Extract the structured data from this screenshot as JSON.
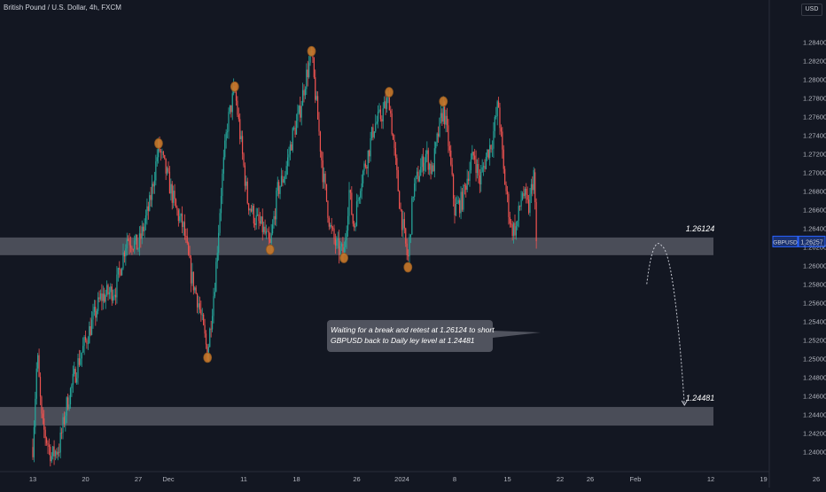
{
  "header": {
    "title": "British Pound / U.S. Dollar, 4h, FXCM",
    "currency": "USD"
  },
  "colors": {
    "background": "#131722",
    "bull": "#26a69a",
    "bear": "#ef5350",
    "zone": "#5d606b",
    "pivot": "#c8782a",
    "axis_text": "#b2b5be",
    "price_tag": "#2962ff"
  },
  "chart_data": {
    "type": "candlestick",
    "symbol": "GBPUSD",
    "timeframe": "4h",
    "ylim": [
      1.238,
      1.2856
    ],
    "x_range_days": [
      0,
      101
    ],
    "y_ticks": [
      "1.28400",
      "1.28200",
      "1.28000",
      "1.27800",
      "1.27600",
      "1.27400",
      "1.27200",
      "1.27000",
      "1.26800",
      "1.26600",
      "1.26400",
      "1.26200",
      "1.26000",
      "1.25800",
      "1.25600",
      "1.25400",
      "1.25200",
      "1.25000",
      "1.24800",
      "1.24600",
      "1.24400",
      "1.24200",
      "1.24000"
    ],
    "x_ticks": [
      {
        "label": "13",
        "day": 0
      },
      {
        "label": "20",
        "day": 7
      },
      {
        "label": "27",
        "day": 14
      },
      {
        "label": "Dec",
        "day": 18
      },
      {
        "label": "11",
        "day": 28
      },
      {
        "label": "18",
        "day": 35
      },
      {
        "label": "26",
        "day": 43
      },
      {
        "label": "2024",
        "day": 49
      },
      {
        "label": "8",
        "day": 56
      },
      {
        "label": "15",
        "day": 63
      },
      {
        "label": "22",
        "day": 70
      },
      {
        "label": "26",
        "day": 74
      },
      {
        "label": "Feb",
        "day": 80
      },
      {
        "label": "12",
        "day": 90
      },
      {
        "label": "19",
        "day": 97
      },
      {
        "label": "26",
        "day": 104
      }
    ],
    "last_price_tag": {
      "symbol": "GBPUSD",
      "value": "1.26257"
    },
    "zones": [
      {
        "label": "1.26124",
        "top": 1.263,
        "bottom": 1.2611
      },
      {
        "label": "1.24481",
        "top": 1.2448,
        "bottom": 1.2428
      }
    ],
    "annotation": "Waiting for a break and retest at 1.26124 to short GBPUSD back to Daily ley level at 1.24481",
    "projection": {
      "start": [
        81.5,
        1.258
      ],
      "peak": [
        83.5,
        1.2621
      ],
      "end": [
        86.5,
        1.245
      ]
    },
    "pivots": [
      [
        1.2731,
        16.7
      ],
      [
        1.2501,
        23.2
      ],
      [
        1.2792,
        26.8
      ],
      [
        1.2617,
        31.5
      ],
      [
        1.283,
        37.0
      ],
      [
        1.2608,
        41.3
      ],
      [
        1.2786,
        47.3
      ],
      [
        1.2598,
        49.8
      ],
      [
        1.2776,
        54.5
      ]
    ],
    "anchors": [
      [
        0,
        1.2405
      ],
      [
        0.6,
        1.2505
      ],
      [
        1.2,
        1.243
      ],
      [
        2.5,
        1.2395
      ],
      [
        3.5,
        1.2405
      ],
      [
        4.5,
        1.245
      ],
      [
        6,
        1.2495
      ],
      [
        7.5,
        1.253
      ],
      [
        9,
        1.2565
      ],
      [
        11,
        1.2575
      ],
      [
        12.5,
        1.263
      ],
      [
        14,
        1.262
      ],
      [
        15.5,
        1.2665
      ],
      [
        16.7,
        1.2728
      ],
      [
        17.7,
        1.27
      ],
      [
        19,
        1.266
      ],
      [
        20,
        1.264
      ],
      [
        21,
        1.259
      ],
      [
        22,
        1.256
      ],
      [
        23.2,
        1.2505
      ],
      [
        24.2,
        1.2585
      ],
      [
        25,
        1.268
      ],
      [
        25.8,
        1.275
      ],
      [
        26.8,
        1.279
      ],
      [
        27.8,
        1.272
      ],
      [
        28.5,
        1.267
      ],
      [
        29.5,
        1.265
      ],
      [
        30.5,
        1.264
      ],
      [
        31.5,
        1.262
      ],
      [
        32.5,
        1.268
      ],
      [
        33.5,
        1.27
      ],
      [
        34.5,
        1.274
      ],
      [
        35.3,
        1.276
      ],
      [
        36.2,
        1.28
      ],
      [
        37,
        1.2826
      ],
      [
        37.8,
        1.276
      ],
      [
        38.5,
        1.27
      ],
      [
        39.5,
        1.264
      ],
      [
        40.3,
        1.262
      ],
      [
        41.3,
        1.2612
      ],
      [
        42,
        1.268
      ],
      [
        42.6,
        1.264
      ],
      [
        43.5,
        1.269
      ],
      [
        44.5,
        1.272
      ],
      [
        45.3,
        1.275
      ],
      [
        46.2,
        1.276
      ],
      [
        47.3,
        1.278
      ],
      [
        48,
        1.272
      ],
      [
        48.8,
        1.266
      ],
      [
        49.8,
        1.2604
      ],
      [
        50.5,
        1.268
      ],
      [
        51.3,
        1.27
      ],
      [
        52.2,
        1.272
      ],
      [
        53,
        1.27
      ],
      [
        53.8,
        1.274
      ],
      [
        54.5,
        1.277
      ],
      [
        55.2,
        1.273
      ],
      [
        56,
        1.266
      ],
      [
        57,
        1.267
      ],
      [
        57.8,
        1.27
      ],
      [
        58.6,
        1.272
      ],
      [
        59.3,
        1.269
      ],
      [
        60.3,
        1.272
      ],
      [
        61,
        1.2735
      ],
      [
        61.8,
        1.2775
      ],
      [
        62.5,
        1.27
      ],
      [
        63.5,
        1.264
      ],
      [
        64.2,
        1.264
      ],
      [
        65,
        1.268
      ],
      [
        65.8,
        1.266
      ],
      [
        66.5,
        1.27
      ]
    ]
  }
}
